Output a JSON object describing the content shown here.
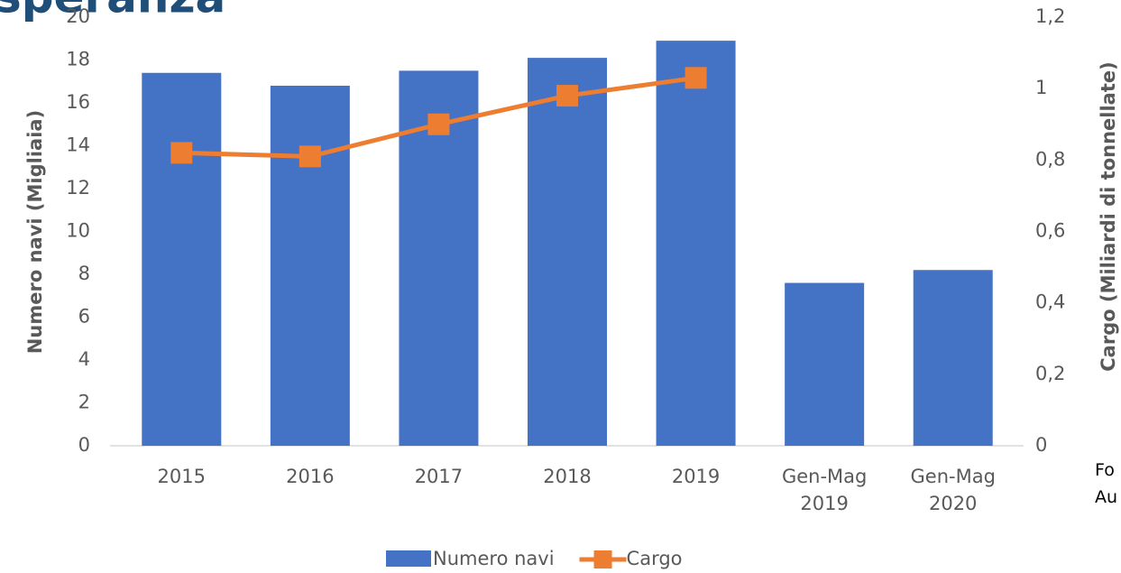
{
  "chart_data": {
    "type": "bar",
    "title": "speranza",
    "y_label": "Numero navi (Migliaia)",
    "y2_label": "Cargo (Miliardi di tonnellate)",
    "categories": [
      "2015",
      "2016",
      "2017",
      "2018",
      "2019",
      "Gen-Mag 2019",
      "Gen-Mag 2020"
    ],
    "series": [
      {
        "name": "Numero navi",
        "type": "bar",
        "color": "#4472c4",
        "values": [
          17.4,
          16.8,
          17.5,
          18.1,
          18.9,
          7.6,
          8.2
        ]
      },
      {
        "name": "Cargo",
        "type": "line",
        "axis": "y2",
        "color": "#ed7d31",
        "values": [
          0.82,
          0.81,
          0.9,
          0.98,
          1.03,
          null,
          null
        ]
      }
    ],
    "ylim": [
      0,
      20
    ],
    "yticks": [
      0,
      2,
      4,
      6,
      8,
      10,
      12,
      14,
      16,
      18,
      20
    ],
    "y2lim": [
      0,
      1.2
    ],
    "y2ticks": [
      0,
      {
        "value": 0.2,
        "label": "0,2"
      },
      {
        "value": 0.4,
        "label": "0,4"
      },
      {
        "value": 0.6,
        "label": "0,6"
      },
      {
        "value": 0.8,
        "label": "0,8"
      },
      1,
      {
        "value": 1.2,
        "label": "1,2"
      }
    ],
    "grid": false,
    "legend": "bottom",
    "side_notes": [
      "Fo",
      "Au"
    ]
  }
}
